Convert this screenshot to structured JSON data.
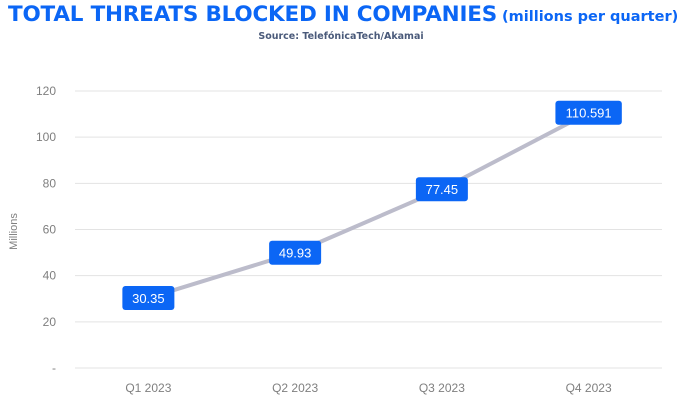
{
  "title": {
    "main": "TOTAL THREATS BLOCKED IN COMPANIES",
    "sub": "(millions per quarter)",
    "source": "Source: TelefónicaTech/Akamai"
  },
  "colors": {
    "accent": "#0b66f5",
    "line": "#bcbccb",
    "grid": "#e3e3e3",
    "axis_text": "#7f7f7f",
    "label_box": "#0b66f5",
    "label_text": "#ffffff"
  },
  "chart_data": {
    "type": "line",
    "title": "TOTAL THREATS BLOCKED IN COMPANIES",
    "subtitle": "(millions per quarter)",
    "xlabel": "",
    "ylabel": "Millions",
    "categories": [
      "Q1 2023",
      "Q2 2023",
      "Q3 2023",
      "Q4 2023"
    ],
    "series": [
      {
        "values": [
          30.35,
          49.93,
          77.45,
          110.591
        ]
      }
    ],
    "data_labels": [
      "30.35",
      "49.93",
      "77.45",
      "110.591"
    ],
    "y_ticks": [
      0,
      20,
      40,
      60,
      80,
      100,
      120
    ],
    "y_tick_labels": [
      "-",
      "20",
      "40",
      "60",
      "80",
      "100",
      "120"
    ],
    "ylim": [
      0,
      120
    ],
    "grid": true,
    "legend": "none"
  }
}
